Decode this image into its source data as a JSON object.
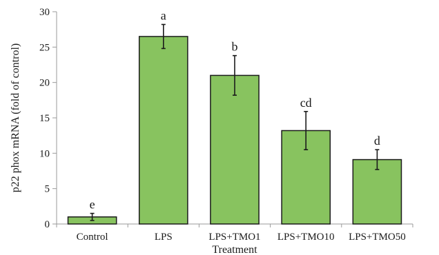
{
  "chart_data": {
    "type": "bar",
    "categories": [
      "Control",
      "LPS",
      "LPS+TMO1",
      "LPS+TMO10",
      "LPS+TMO50"
    ],
    "values": [
      1.0,
      26.5,
      21.0,
      13.2,
      9.1
    ],
    "error": [
      0.5,
      1.7,
      2.8,
      2.7,
      1.4
    ],
    "significance_labels": [
      "e",
      "a",
      "b",
      "cd",
      "d"
    ],
    "xlabel": "Treatment",
    "ylabel": "p22 phox mRNA  (fold of control)",
    "ylim": [
      0,
      30
    ],
    "yticks": [
      0,
      5,
      10,
      15,
      20,
      25,
      30
    ],
    "bar_color": "#88c35f",
    "grid": false,
    "legend": "none"
  }
}
